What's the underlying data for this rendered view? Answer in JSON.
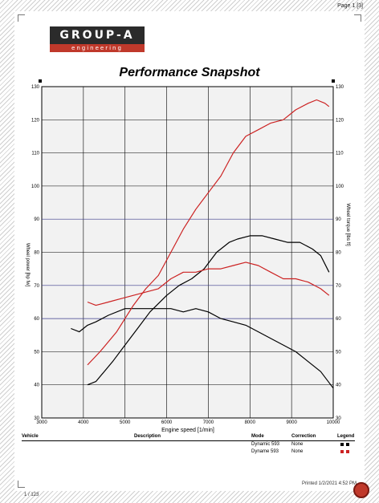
{
  "page": {
    "number": "Page 1 [3]"
  },
  "logo": {
    "name": "GROUP-A",
    "subtitle": "engineering"
  },
  "chart_data": {
    "type": "line",
    "title": "Performance Snapshot",
    "xlabel": "Engine speed [1/min]",
    "ylabel_left": "Wheel power [hp fw]",
    "ylabel_right": "Wheel torque [lbs ft]",
    "xlim": [
      3000,
      10000
    ],
    "ylim": [
      30,
      130
    ],
    "x_ticks": [
      "3000",
      "4000",
      "5000",
      "6000",
      "7000",
      "8000",
      "9000",
      "10000"
    ],
    "y_ticks_left": [
      "30",
      "40",
      "50",
      "60",
      "70",
      "80",
      "90",
      "100",
      "110",
      "120",
      "130"
    ],
    "y_ticks_right": [
      "30",
      "40",
      "50",
      "60",
      "70",
      "80",
      "90",
      "100",
      "110",
      "120",
      "130"
    ],
    "grid": true,
    "series": [
      {
        "name": "Dynamic 593 power",
        "color": "#000000",
        "x": [
          4100,
          4300,
          4500,
          4700,
          5000,
          5300,
          5600,
          6000,
          6300,
          6600,
          6900,
          7200,
          7500,
          7700,
          8000,
          8300,
          8600,
          8900,
          9200,
          9500,
          9700,
          9900
        ],
        "y": [
          40,
          41,
          44,
          47,
          52,
          57,
          62,
          67,
          70,
          72,
          75,
          80,
          83,
          84,
          85,
          85,
          84,
          83,
          83,
          81,
          79,
          74
        ]
      },
      {
        "name": "Dynamic 593 torque",
        "color": "#000000",
        "x": [
          3700,
          3900,
          4100,
          4300,
          4600,
          5000,
          5200,
          5500,
          5800,
          6100,
          6400,
          6700,
          7000,
          7300,
          7600,
          7900,
          8200,
          8500,
          8800,
          9100,
          9400,
          9700,
          10000
        ],
        "y": [
          57,
          56,
          58,
          59,
          61,
          63,
          63,
          63,
          63,
          63,
          62,
          63,
          62,
          60,
          59,
          58,
          56,
          54,
          52,
          50,
          47,
          44,
          39
        ]
      },
      {
        "name": "Dyname 593 power",
        "color": "#cc2222",
        "x": [
          4100,
          4400,
          4800,
          5200,
          5500,
          5800,
          6100,
          6400,
          6700,
          7000,
          7300,
          7600,
          7900,
          8200,
          8500,
          8800,
          9100,
          9400,
          9600,
          9800,
          9900
        ],
        "y": [
          46,
          50,
          56,
          64,
          69,
          73,
          80,
          87,
          93,
          98,
          103,
          110,
          115,
          117,
          119,
          120,
          123,
          125,
          126,
          125,
          124
        ]
      },
      {
        "name": "Dyname 593 torque",
        "color": "#cc2222",
        "x": [
          4100,
          4300,
          4600,
          4900,
          5200,
          5500,
          5800,
          6100,
          6400,
          6700,
          7000,
          7300,
          7600,
          7900,
          8200,
          8500,
          8800,
          9100,
          9400,
          9700,
          9900
        ],
        "y": [
          65,
          64,
          65,
          66,
          67,
          68,
          69,
          72,
          74,
          74,
          75,
          75,
          76,
          77,
          76,
          74,
          72,
          72,
          71,
          69,
          67
        ]
      }
    ]
  },
  "table": {
    "headers": {
      "vehicle": "Vehicle",
      "description": "Description",
      "mode": "Mode",
      "correction": "Correction",
      "legend": "Legend"
    },
    "rows": [
      {
        "mode": "Dynamic 593",
        "correction": "None",
        "color": "#000000"
      },
      {
        "mode": "Dyname 593",
        "correction": "None",
        "color": "#cc2222"
      }
    ]
  },
  "footer": {
    "printed": "Printed 1/2/2021 4:52 PM",
    "left_text": "1 / 123"
  }
}
